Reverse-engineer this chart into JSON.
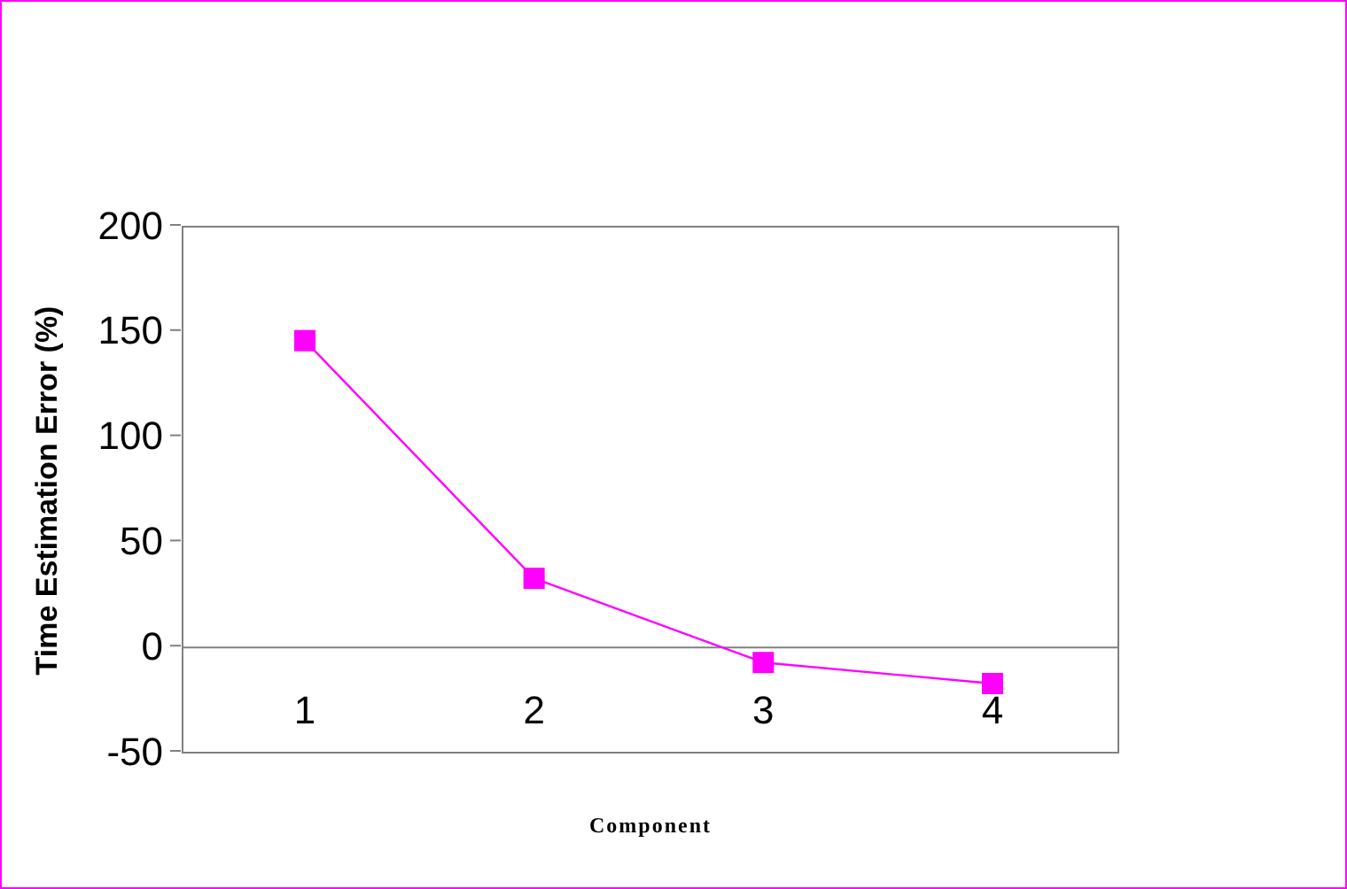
{
  "chart_data": {
    "type": "line",
    "xlabel": "Component",
    "ylabel": "Time Estimation Error (%)",
    "categories": [
      "1",
      "2",
      "3",
      "4"
    ],
    "series": [
      {
        "color": "#ff00ff",
        "values": [
          145,
          32,
          -8,
          -18
        ]
      }
    ],
    "ylim": [
      -50,
      200
    ],
    "yticks": [
      -50,
      0,
      50,
      100,
      150,
      200
    ],
    "marker": "square",
    "line_style": "solid"
  }
}
